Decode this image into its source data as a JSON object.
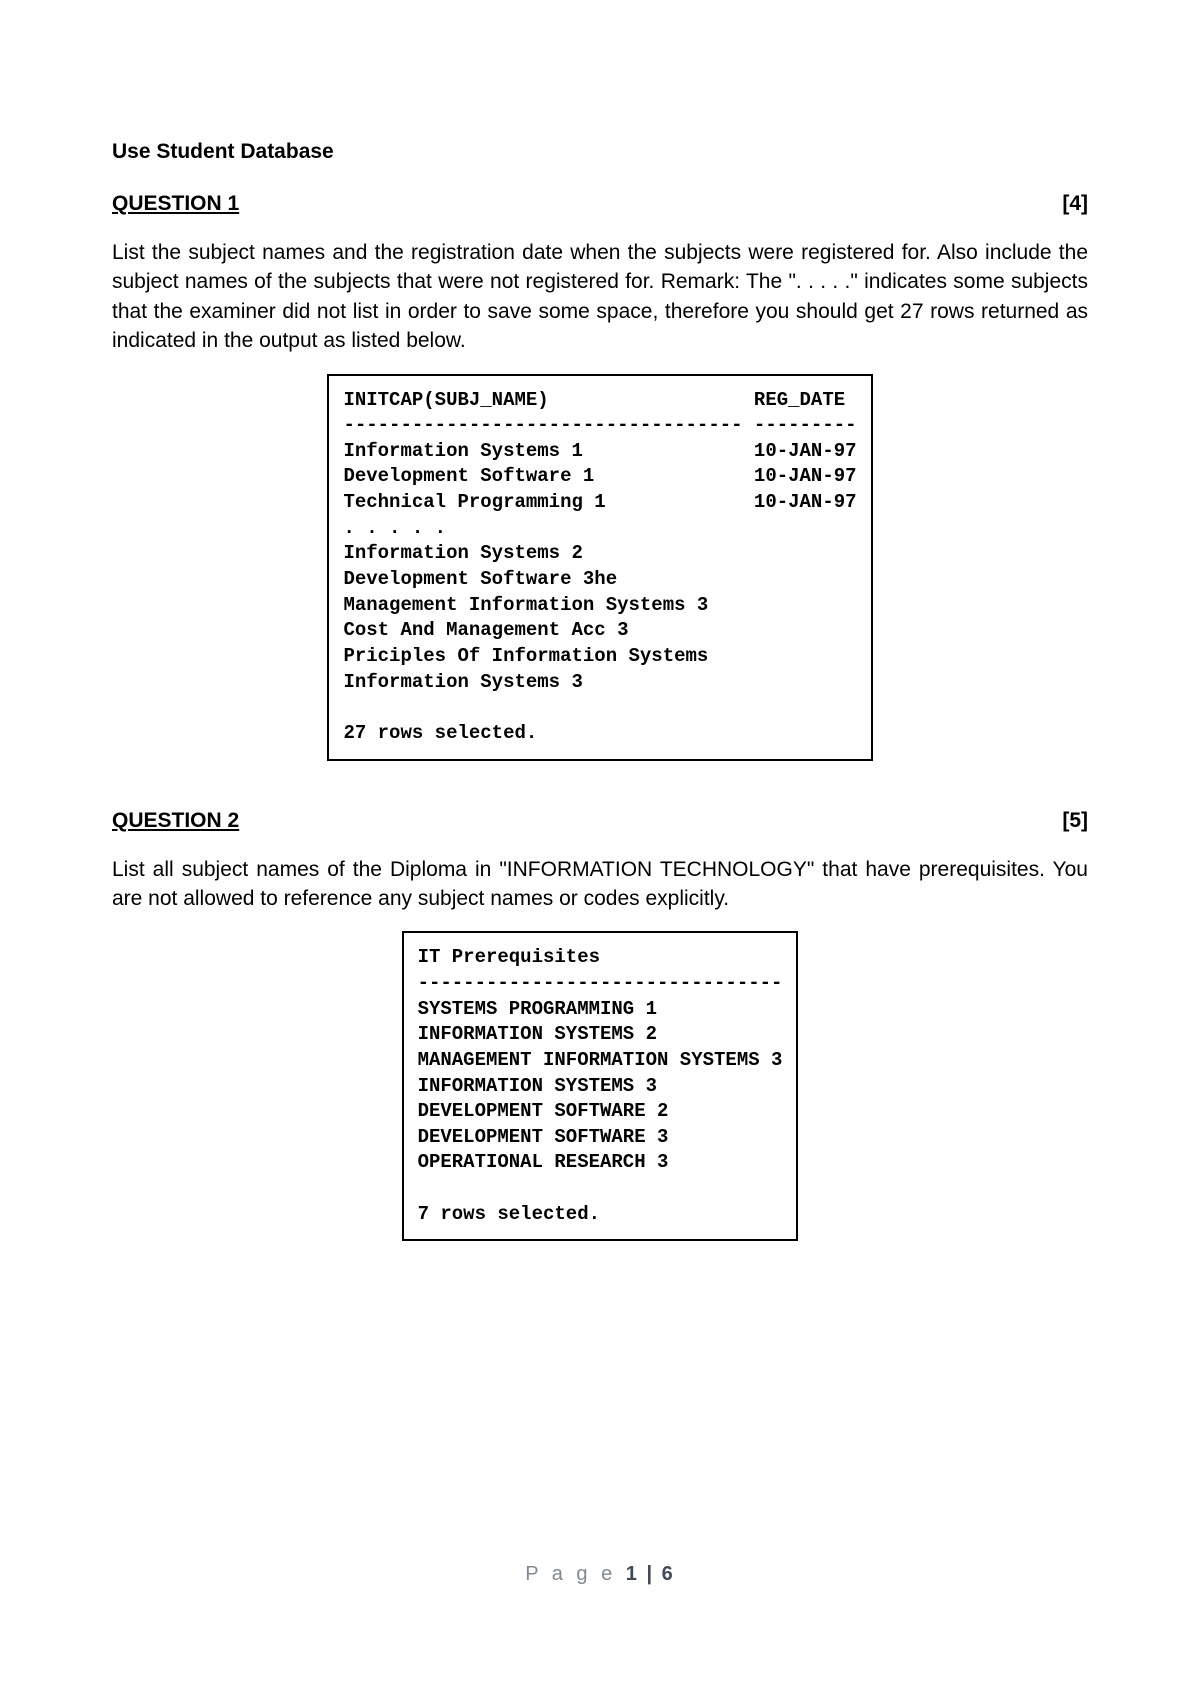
{
  "page": {
    "title": "Use Student Database",
    "footer_prefix": "P a g e ",
    "footer_page": "1 | 6"
  },
  "q1": {
    "label": "QUESTION 1",
    "marks": "[4]",
    "body": "List the subject names and the registration date when the subjects were registered for. Also include the subject names of the subjects that were not registered for. Remark: The \". . . . .\" indicates some subjects that the examiner did not list in order to save some space, therefore you should get 27 rows returned as indicated in the output as listed below.",
    "output": "INITCAP(SUBJ_NAME)                  REG_DATE\n----------------------------------- ---------\nInformation Systems 1               10-JAN-97\nDevelopment Software 1              10-JAN-97\nTechnical Programming 1             10-JAN-97\n. . . . .\nInformation Systems 2\nDevelopment Software 3he\nManagement Information Systems 3\nCost And Management Acc 3\nPriciples Of Information Systems\nInformation Systems 3\n\n27 rows selected."
  },
  "q2": {
    "label": "QUESTION 2",
    "marks": "[5]",
    "body": "List all subject names of the Diploma in \"INFORMATION TECHNOLOGY\" that have prerequisites. You are not allowed to reference any subject names or codes explicitly.",
    "output": "IT Prerequisites\n--------------------------------\nSYSTEMS PROGRAMMING 1\nINFORMATION SYSTEMS 2\nMANAGEMENT INFORMATION SYSTEMS 3\nINFORMATION SYSTEMS 3\nDEVELOPMENT SOFTWARE 2\nDEVELOPMENT SOFTWARE 3\nOPERATIONAL RESEARCH 3\n\n7 rows selected."
  }
}
